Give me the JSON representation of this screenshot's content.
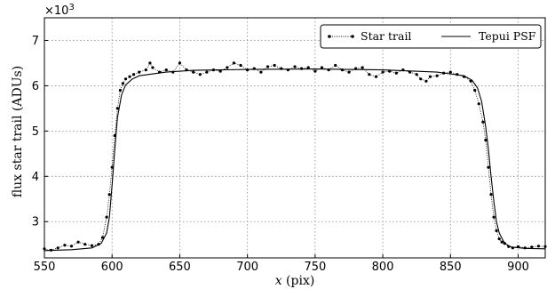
{
  "chart_data": {
    "type": "line",
    "xlabel_var": "x",
    "xlabel_unit": " (pix)",
    "ylabel": "flux star trail (ADUs)",
    "y_multiplier": "×10",
    "y_multiplier_exp": "3",
    "xlim": [
      550,
      920
    ],
    "ylim": [
      2.2,
      7.5
    ],
    "x_ticks": [
      550,
      600,
      650,
      700,
      750,
      800,
      850,
      900
    ],
    "y_ticks": [
      3,
      4,
      5,
      6,
      7
    ],
    "grid": true,
    "legend_position": "top-right",
    "colors": {
      "star_trail": "#000000",
      "tepui_psf": "#000000"
    },
    "series": [
      {
        "name": "Star trail",
        "style": "dotted-markers",
        "x": [
          550,
          555,
          560,
          565,
          570,
          575,
          580,
          585,
          590,
          593,
          596,
          598,
          600,
          602,
          604,
          606,
          608,
          610,
          613,
          616,
          620,
          625,
          628,
          630,
          635,
          640,
          645,
          650,
          655,
          660,
          665,
          670,
          675,
          680,
          685,
          690,
          695,
          700,
          705,
          710,
          715,
          720,
          725,
          730,
          735,
          740,
          745,
          750,
          755,
          760,
          765,
          770,
          775,
          780,
          785,
          790,
          795,
          800,
          805,
          810,
          815,
          820,
          825,
          828,
          832,
          835,
          840,
          845,
          850,
          855,
          860,
          865,
          868,
          871,
          874,
          876,
          878,
          880,
          882,
          884,
          886,
          888,
          890,
          893,
          896,
          900,
          905,
          910,
          915,
          920
        ],
        "y": [
          2.4,
          2.37,
          2.42,
          2.48,
          2.46,
          2.55,
          2.5,
          2.47,
          2.5,
          2.65,
          3.1,
          3.6,
          4.2,
          4.9,
          5.5,
          5.9,
          6.05,
          6.15,
          6.2,
          6.25,
          6.3,
          6.35,
          6.5,
          6.4,
          6.3,
          6.35,
          6.3,
          6.5,
          6.35,
          6.3,
          6.25,
          6.3,
          6.35,
          6.32,
          6.4,
          6.5,
          6.45,
          6.35,
          6.38,
          6.3,
          6.42,
          6.45,
          6.38,
          6.35,
          6.42,
          6.38,
          6.4,
          6.32,
          6.4,
          6.35,
          6.45,
          6.35,
          6.3,
          6.38,
          6.4,
          6.25,
          6.2,
          6.3,
          6.32,
          6.28,
          6.35,
          6.3,
          6.25,
          6.15,
          6.1,
          6.2,
          6.22,
          6.28,
          6.3,
          6.25,
          6.2,
          6.1,
          5.9,
          5.6,
          5.2,
          4.8,
          4.2,
          3.6,
          3.1,
          2.8,
          2.62,
          2.55,
          2.52,
          2.45,
          2.42,
          2.45,
          2.42,
          2.44,
          2.46,
          2.45
        ]
      },
      {
        "name": "Tepui PSF",
        "style": "solid",
        "x": [
          550,
          570,
          585,
          592,
          596,
          598,
          600,
          602,
          604,
          607,
          610,
          615,
          620,
          640,
          660,
          700,
          750,
          800,
          840,
          860,
          866,
          870,
          873,
          876,
          878,
          880,
          882,
          884,
          886,
          890,
          895,
          905,
          920
        ],
        "y": [
          2.36,
          2.38,
          2.42,
          2.52,
          2.75,
          3.1,
          3.8,
          4.6,
          5.3,
          5.8,
          6.02,
          6.15,
          6.22,
          6.3,
          6.34,
          6.36,
          6.37,
          6.35,
          6.3,
          6.22,
          6.12,
          5.95,
          5.65,
          5.1,
          4.6,
          4.0,
          3.45,
          3.0,
          2.75,
          2.52,
          2.44,
          2.41,
          2.4
        ]
      }
    ]
  }
}
